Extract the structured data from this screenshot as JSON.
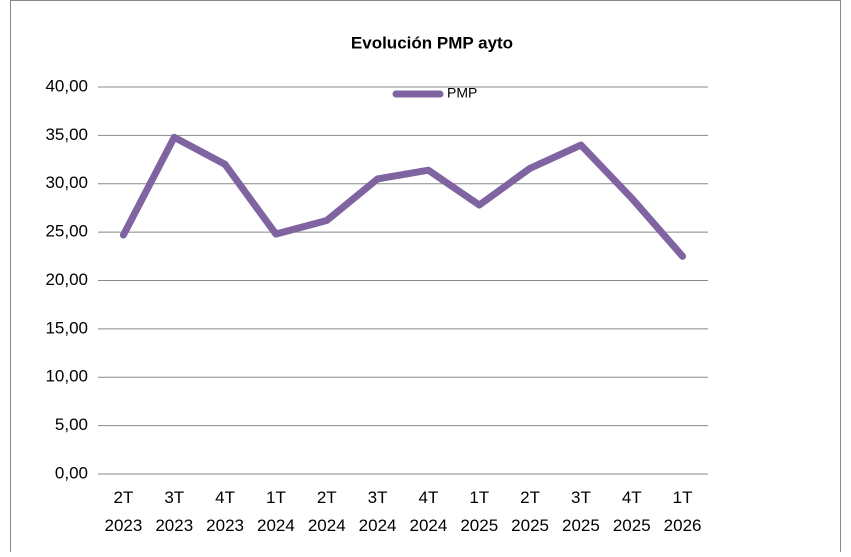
{
  "chart_data": {
    "type": "line",
    "title": "Evolución   PMP ayto",
    "categories": [
      [
        "2T",
        "2023"
      ],
      [
        "3T",
        "2023"
      ],
      [
        "4T",
        "2023"
      ],
      [
        "1T",
        "2024"
      ],
      [
        "2T",
        "2024"
      ],
      [
        "3T",
        "2024"
      ],
      [
        "4T",
        "2024"
      ],
      [
        "1T",
        "2025"
      ],
      [
        "2T",
        "2025"
      ],
      [
        "3T",
        "2025"
      ],
      [
        "4T",
        "2025"
      ],
      [
        "1T",
        "2026"
      ]
    ],
    "series": [
      {
        "name": "PMP",
        "color": "#8064a2",
        "values": [
          24.7,
          34.8,
          32.0,
          24.8,
          26.2,
          30.5,
          31.4,
          27.8,
          31.6,
          34.0,
          28.5,
          22.5
        ]
      }
    ],
    "ylim": [
      0,
      40
    ],
    "yticks": [
      {
        "value": 0,
        "label": "0,00"
      },
      {
        "value": 5,
        "label": "5,00"
      },
      {
        "value": 10,
        "label": "10,00"
      },
      {
        "value": 15,
        "label": "15,00"
      },
      {
        "value": 20,
        "label": "20,00"
      },
      {
        "value": 25,
        "label": "25,00"
      },
      {
        "value": 30,
        "label": "30,00"
      },
      {
        "value": 35,
        "label": "35,00"
      },
      {
        "value": 40,
        "label": "40,00"
      }
    ],
    "grid": true,
    "legend": "top"
  }
}
